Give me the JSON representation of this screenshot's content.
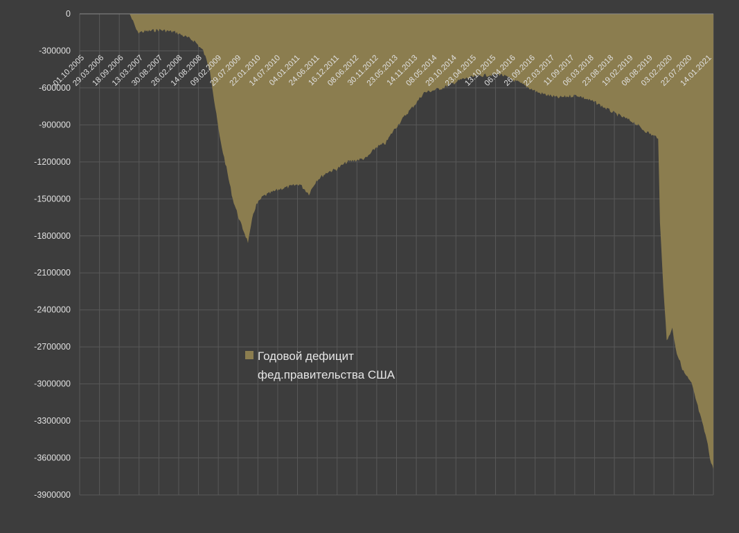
{
  "chart_data": {
    "type": "area",
    "title": "",
    "xlabel": "",
    "ylabel": "",
    "ylim": [
      -3900000,
      0
    ],
    "y_ticks": [
      0,
      -300000,
      -600000,
      -900000,
      -1200000,
      -1500000,
      -1800000,
      -2100000,
      -2400000,
      -2700000,
      -3000000,
      -3300000,
      -3600000,
      -3900000
    ],
    "x_range": [
      "2005-10-01",
      "2021-08-01"
    ],
    "x_tick_labels": [
      "01.10.2005",
      "29.03.2006",
      "18.09.2006",
      "13.03.2007",
      "30.08.2007",
      "26.02.2008",
      "14.08.2008",
      "09.02.2009",
      "29.07.2009",
      "22.01.2010",
      "14.07.2010",
      "04.01.2011",
      "24.06.2011",
      "16.12.2011",
      "08.06.2012",
      "30.11.2012",
      "23.05.2013",
      "14.11.2013",
      "08.05.2014",
      "29.10.2014",
      "23.04.2015",
      "13.10.2015",
      "06.04.2016",
      "26.09.2016",
      "22.03.2017",
      "11.09.2017",
      "06.03.2018",
      "23.08.2018",
      "19.02.2019",
      "08.08.2019",
      "03.02.2020",
      "22.07.2020",
      "14.01.2021"
    ],
    "grid": true,
    "legend_position": "center-left",
    "series": [
      {
        "name": "Годовой дефицит фед.правительства США",
        "color": "#8b7d4f",
        "x": [
          "2005-10-01",
          "2006-06-01",
          "2007-01-01",
          "2007-03-13",
          "2007-10-01",
          "2008-02-26",
          "2008-08-14",
          "2008-11-01",
          "2009-01-01",
          "2009-02-09",
          "2009-04-01",
          "2009-06-01",
          "2009-07-29",
          "2009-10-01",
          "2009-11-15",
          "2009-12-15",
          "2010-01-01",
          "2010-02-01",
          "2010-03-01",
          "2010-05-01",
          "2010-07-14",
          "2010-10-01",
          "2011-01-04",
          "2011-04-01",
          "2011-06-24",
          "2011-09-01",
          "2011-12-16",
          "2012-03-01",
          "2012-06-08",
          "2012-10-01",
          "2012-11-30",
          "2013-03-01",
          "2013-05-23",
          "2013-08-01",
          "2013-11-14",
          "2014-03-01",
          "2014-05-08",
          "2014-10-29",
          "2015-04-23",
          "2015-10-13",
          "2016-01-15",
          "2016-04-06",
          "2016-09-26",
          "2017-03-22",
          "2017-09-11",
          "2018-03-06",
          "2018-08-23",
          "2019-02-19",
          "2019-08-08",
          "2019-11-01",
          "2020-02-03",
          "2020-03-15",
          "2020-04-01",
          "2020-05-01",
          "2020-06-01",
          "2020-07-22",
          "2020-09-01",
          "2020-11-01",
          "2021-01-14",
          "2021-03-01",
          "2021-05-01",
          "2021-06-01",
          "2021-07-01",
          "2021-08-01"
        ],
        "values": [
          0,
          0,
          0,
          -150000,
          -130000,
          -150000,
          -220000,
          -300000,
          -450000,
          -700000,
          -1000000,
          -1250000,
          -1500000,
          -1680000,
          -1780000,
          -1850000,
          -1780000,
          -1620000,
          -1550000,
          -1480000,
          -1450000,
          -1420000,
          -1400000,
          -1380000,
          -1460000,
          -1350000,
          -1280000,
          -1260000,
          -1200000,
          -1180000,
          -1170000,
          -1080000,
          -1050000,
          -950000,
          -830000,
          -720000,
          -640000,
          -600000,
          -530000,
          -500000,
          -495000,
          -490000,
          -560000,
          -640000,
          -680000,
          -660000,
          -720000,
          -810000,
          -880000,
          -940000,
          -990000,
          -1000000,
          -1700000,
          -2200000,
          -2650000,
          -2550000,
          -2750000,
          -2900000,
          -3000000,
          -3150000,
          -3350000,
          -3450000,
          -3600000,
          -3690000
        ]
      }
    ]
  }
}
